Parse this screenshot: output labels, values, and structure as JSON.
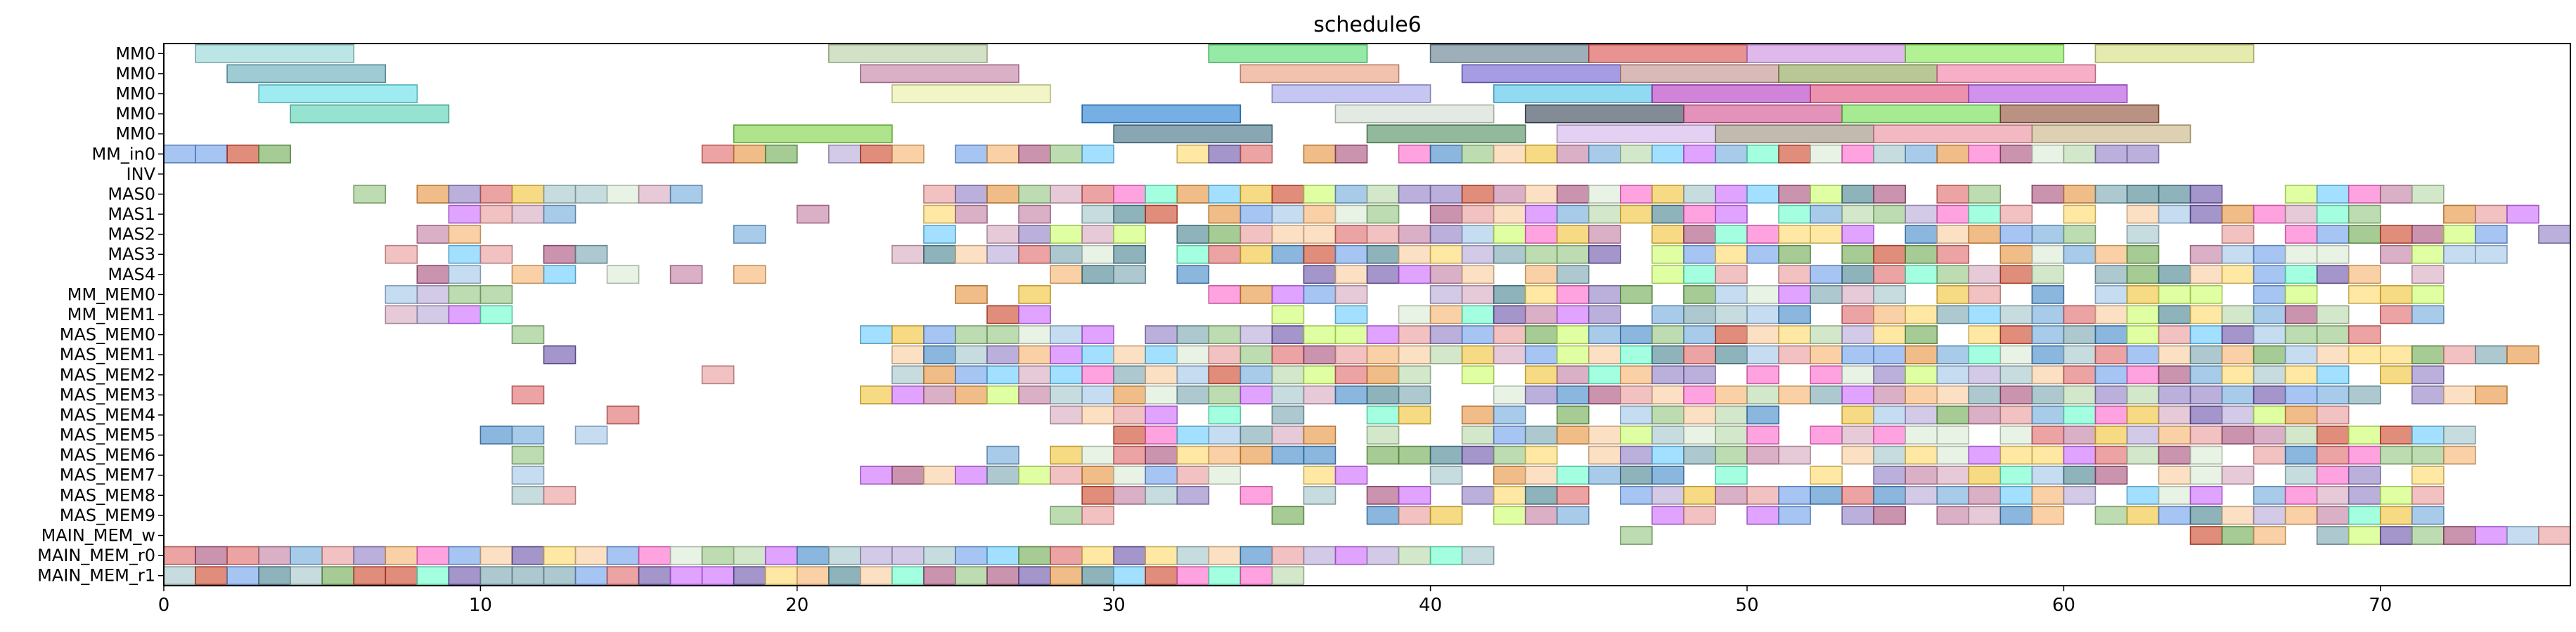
{
  "chart_data": {
    "type": "gantt",
    "title": "schedule6",
    "xlim": [
      0,
      76
    ],
    "x_ticks": [
      0,
      10,
      20,
      30,
      40,
      50,
      60,
      70
    ],
    "rows": [
      "MM0",
      "MM0",
      "MM0",
      "MM0",
      "MM0",
      "MM_in0",
      "INV",
      "MAS0",
      "MAS1",
      "MAS2",
      "MAS3",
      "MAS4",
      "MM_MEM0",
      "MM_MEM1",
      "MAS_MEM0",
      "MAS_MEM1",
      "MAS_MEM2",
      "MAS_MEM3",
      "MAS_MEM4",
      "MAS_MEM5",
      "MAS_MEM6",
      "MAS_MEM7",
      "MAS_MEM8",
      "MAS_MEM9",
      "MAIN_MEM_w",
      "MAIN_MEM_r0",
      "MAIN_MEM_r1"
    ],
    "palette": [
      "#9fc5e8",
      "#6fa8dc",
      "#93c47d",
      "#f6b26b",
      "#e06666",
      "#8e7cc3",
      "#76a5af",
      "#c27ba0",
      "#ffd966",
      "#b6d7a8",
      "#ea9999",
      "#a2c4c9",
      "#d5a6bd",
      "#f9cb9c",
      "#b4a7d6",
      "#6aa84f",
      "#3d85c6",
      "#cc4125",
      "#45818e",
      "#a64d79",
      "#e69138",
      "#674ea7",
      "#f1c232",
      "#6d9eeb",
      "#d9ead3",
      "#ff66cc",
      "#66ffcc",
      "#cc66ff",
      "#ccff66",
      "#66ccff"
    ],
    "bars": [
      {
        "row": 0,
        "start": 1,
        "end": 6,
        "color": "#8fd3d3"
      },
      {
        "row": 0,
        "start": 21,
        "end": 26,
        "color": "#b6cfa0"
      },
      {
        "row": 0,
        "start": 33,
        "end": 38,
        "color": "#4fdc6a"
      },
      {
        "row": 0,
        "start": 40,
        "end": 45,
        "color": "#5f7a8a"
      },
      {
        "row": 0,
        "start": 45,
        "end": 50,
        "color": "#d94a4a"
      },
      {
        "row": 0,
        "start": 50,
        "end": 55,
        "color": "#c98ae0"
      },
      {
        "row": 0,
        "start": 55,
        "end": 60,
        "color": "#7eea4a"
      },
      {
        "row": 0,
        "start": 61,
        "end": 66,
        "color": "#d4dc7a"
      },
      {
        "row": 1,
        "start": 2,
        "end": 7,
        "color": "#5fa8b8"
      },
      {
        "row": 1,
        "start": 22,
        "end": 27,
        "color": "#c27ba0"
      },
      {
        "row": 1,
        "start": 34,
        "end": 39,
        "color": "#ea9a7a"
      },
      {
        "row": 1,
        "start": 41,
        "end": 46,
        "color": "#6a5ad0"
      },
      {
        "row": 1,
        "start": 46,
        "end": 51,
        "color": "#c28a8a"
      },
      {
        "row": 1,
        "start": 51,
        "end": 56,
        "color": "#8aa050"
      },
      {
        "row": 1,
        "start": 56,
        "end": 61,
        "color": "#f07aa0"
      },
      {
        "row": 2,
        "start": 3,
        "end": 8,
        "color": "#5ee0ea"
      },
      {
        "row": 2,
        "start": 23,
        "end": 28,
        "color": "#eaf0a0"
      },
      {
        "row": 2,
        "start": 35,
        "end": 40,
        "color": "#a0a0ea"
      },
      {
        "row": 2,
        "start": 42,
        "end": 47,
        "color": "#4ac0ea"
      },
      {
        "row": 2,
        "start": 47,
        "end": 52,
        "color": "#b030c0"
      },
      {
        "row": 2,
        "start": 52,
        "end": 57,
        "color": "#e04a7a"
      },
      {
        "row": 2,
        "start": 57,
        "end": 62,
        "color": "#b04ae0"
      },
      {
        "row": 3,
        "start": 4,
        "end": 9,
        "color": "#4fd0b0"
      },
      {
        "row": 3,
        "start": 29,
        "end": 34,
        "color": "#1a7ad0"
      },
      {
        "row": 3,
        "start": 37,
        "end": 42,
        "color": "#d0dcd0"
      },
      {
        "row": 3,
        "start": 43,
        "end": 48,
        "color": "#304050"
      },
      {
        "row": 3,
        "start": 48,
        "end": 53,
        "color": "#d04a8a"
      },
      {
        "row": 3,
        "start": 53,
        "end": 58,
        "color": "#6adc4a"
      },
      {
        "row": 3,
        "start": 58,
        "end": 63,
        "color": "#8a4a30"
      },
      {
        "row": 4,
        "start": 18,
        "end": 23,
        "color": "#7ad040"
      },
      {
        "row": 4,
        "start": 30,
        "end": 35,
        "color": "#3a6a80"
      },
      {
        "row": 4,
        "start": 38,
        "end": 43,
        "color": "#4a8a5a"
      },
      {
        "row": 4,
        "start": 44,
        "end": 49,
        "color": "#d0b0ea"
      },
      {
        "row": 4,
        "start": 49,
        "end": 54,
        "color": "#9a8a7a"
      },
      {
        "row": 4,
        "start": 54,
        "end": 59,
        "color": "#ea8a9a"
      },
      {
        "row": 4,
        "start": 59,
        "end": 64,
        "color": "#c8b080"
      }
    ]
  }
}
